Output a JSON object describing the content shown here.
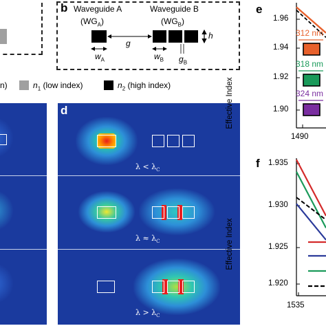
{
  "panel_b": {
    "label": "b",
    "wg_a_title": "Waveguide A",
    "wg_a_abbr": "(WG",
    "wg_a_sub": "A",
    "wg_b_title": "Waveguide B",
    "wg_b_abbr": "(WG",
    "wg_b_sub": "B",
    "h": "h",
    "g": "g",
    "wa": "w",
    "wa_sub": "A",
    "wb": "w",
    "wb_sub": "B",
    "gb": "g",
    "gb_sub": "B"
  },
  "legend": {
    "left_fragment": "n)",
    "n1_label": "n",
    "n1_sub": "1",
    "n1_text": " (low index)",
    "n2_label": "n",
    "n2_sub": "2",
    "n2_text": " (high index)",
    "n1_color": "#a0a0a0",
    "n2_color": "#000000"
  },
  "panel_d": {
    "label": "d",
    "cond1": "λ < λ",
    "cond1_sub": "C",
    "cond2": "λ ≈ λ",
    "cond2_sub": "C",
    "cond3": "λ > λ",
    "cond3_sub": "C",
    "background_color": "#1a3a9e"
  },
  "panel_e": {
    "label": "e",
    "ylabel": "Effective Index",
    "yticks": [
      "1.96",
      "1.94",
      "1.92",
      "1.90"
    ],
    "xtick": "1490",
    "entries": [
      {
        "text": "312 nm",
        "color": "#e8612c"
      },
      {
        "text": "318 nm",
        "color": "#1a9a5a"
      },
      {
        "text": "324 nm",
        "color": "#7a2ea0"
      }
    ]
  },
  "panel_f": {
    "label": "f",
    "ylabel": "Effective Index",
    "yticks": [
      "1.935",
      "1.930",
      "1.925",
      "1.920"
    ],
    "xtick": "1535",
    "legend_colors": [
      "#d42a2a",
      "#2a3a9a",
      "#1a9a5a",
      "#000000"
    ]
  },
  "chart_data": [
    {
      "type": "line",
      "title": "",
      "xlabel": "",
      "ylabel": "Effective Index",
      "ylim": [
        1.89,
        1.97
      ],
      "y_ticks": [
        1.96,
        1.94,
        1.92,
        1.9
      ],
      "x_ticks": [
        1490
      ],
      "series": [
        {
          "name": "312 nm",
          "color": "#e8612c",
          "x": [
            1482,
            1500
          ],
          "y": [
            1.968,
            1.951
          ]
        }
      ],
      "dashed_reference": {
        "color": "#000000",
        "x": [
          1482,
          1500
        ],
        "y": [
          1.966,
          1.948
        ]
      }
    },
    {
      "type": "line",
      "title": "",
      "xlabel": "",
      "ylabel": "Effective Index",
      "ylim": [
        1.918,
        1.937
      ],
      "y_ticks": [
        1.935,
        1.93,
        1.925,
        1.92
      ],
      "x_ticks": [
        1535
      ],
      "series": [
        {
          "color": "#d42a2a",
          "x": [
            1533,
            1545
          ],
          "y": [
            1.9355,
            1.9285
          ]
        },
        {
          "color": "#1a9a5a",
          "x": [
            1533,
            1545
          ],
          "y": [
            1.934,
            1.927
          ]
        },
        {
          "color": "#2a3a9a",
          "x": [
            1533,
            1545
          ],
          "y": [
            1.93,
            1.9255
          ]
        }
      ],
      "dashed_reference": {
        "color": "#000000",
        "x": [
          1533,
          1545
        ],
        "y": [
          1.9308,
          1.928
        ]
      }
    }
  ]
}
